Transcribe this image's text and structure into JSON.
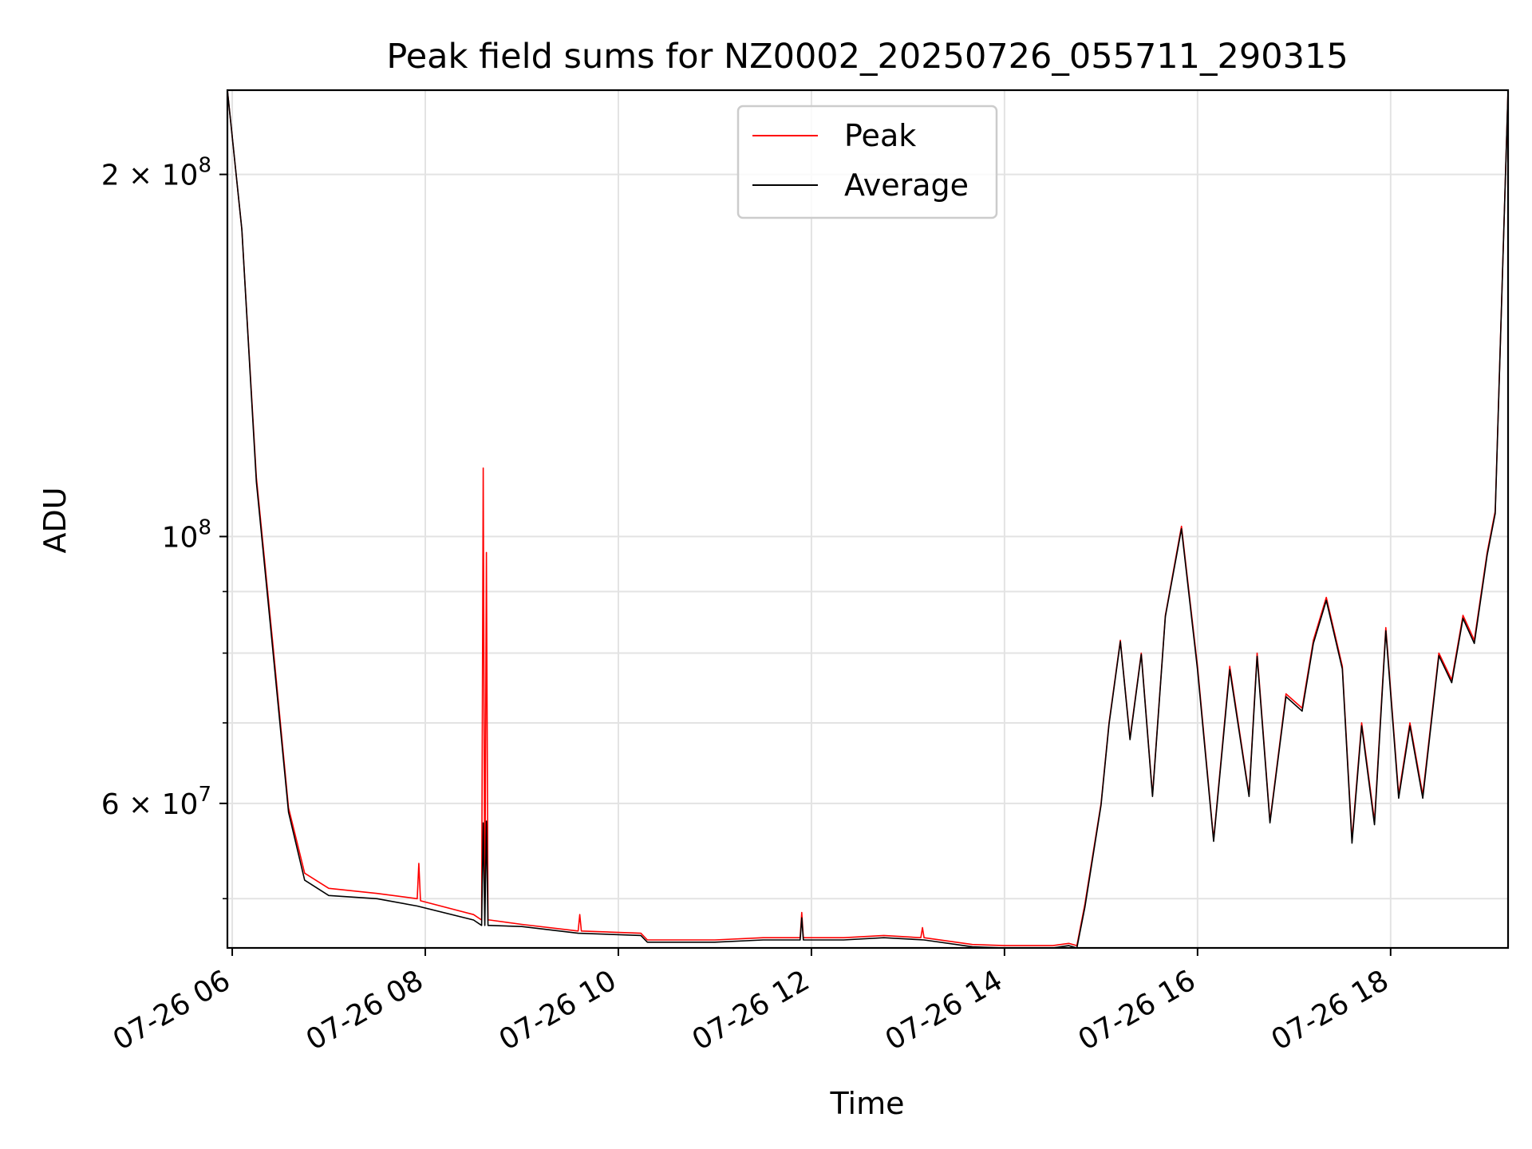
{
  "chart_data": {
    "type": "line",
    "title": "Peak field sums for NZ0002_20250726_055711_290315",
    "xlabel": "Time",
    "ylabel": "ADU",
    "yscale": "log",
    "ylim": [
      45500000,
      235000000
    ],
    "xlim": [
      "2025-07-26 05:57:00",
      "2025-07-26 19:13:00"
    ],
    "grid": true,
    "legend_position": "upper center",
    "x_tick_labels": [
      "07-26 06",
      "07-26 08",
      "07-26 10",
      "07-26 12",
      "07-26 14",
      "07-26 16",
      "07-26 18"
    ],
    "x_tick_values": [
      "2025-07-26 06:00",
      "2025-07-26 08:00",
      "2025-07-26 10:00",
      "2025-07-26 12:00",
      "2025-07-26 14:00",
      "2025-07-26 16:00",
      "2025-07-26 18:00"
    ],
    "y_tick_labels": [
      {
        "value": 200000000,
        "mantissa": "2",
        "exponent": "8"
      },
      {
        "value": 100000000,
        "mantissa": "",
        "exponent": "8"
      },
      {
        "value": 60000000,
        "mantissa": "6",
        "exponent": "7"
      }
    ],
    "y_minor_ticks": [
      50000000,
      70000000,
      80000000,
      90000000
    ],
    "series": [
      {
        "name": "Peak",
        "color": "#ff0000",
        "x": [
          "2025-07-26 05:57",
          "2025-07-26 06:06",
          "2025-07-26 06:15",
          "2025-07-26 06:25",
          "2025-07-26 06:35",
          "2025-07-26 06:45",
          "2025-07-26 07:00",
          "2025-07-26 07:30",
          "2025-07-26 07:55",
          "2025-07-26 07:56",
          "2025-07-26 07:57",
          "2025-07-26 08:30",
          "2025-07-26 08:35",
          "2025-07-26 08:36",
          "2025-07-26 08:37",
          "2025-07-26 08:38",
          "2025-07-26 08:39",
          "2025-07-26 08:40",
          "2025-07-26 09:00",
          "2025-07-26 09:35",
          "2025-07-26 09:36",
          "2025-07-26 09:37",
          "2025-07-26 10:14",
          "2025-07-26 10:18",
          "2025-07-26 10:30",
          "2025-07-26 11:00",
          "2025-07-26 11:30",
          "2025-07-26 11:53",
          "2025-07-26 11:54",
          "2025-07-26 11:55",
          "2025-07-26 12:20",
          "2025-07-26 12:45",
          "2025-07-26 13:08",
          "2025-07-26 13:09",
          "2025-07-26 13:10",
          "2025-07-26 13:40",
          "2025-07-26 14:00",
          "2025-07-26 14:30",
          "2025-07-26 14:40",
          "2025-07-26 14:45",
          "2025-07-26 14:50",
          "2025-07-26 15:00",
          "2025-07-26 15:05",
          "2025-07-26 15:12",
          "2025-07-26 15:18",
          "2025-07-26 15:25",
          "2025-07-26 15:32",
          "2025-07-26 15:40",
          "2025-07-26 15:50",
          "2025-07-26 16:00",
          "2025-07-26 16:10",
          "2025-07-26 16:20",
          "2025-07-26 16:32",
          "2025-07-26 16:37",
          "2025-07-26 16:45",
          "2025-07-26 16:55",
          "2025-07-26 17:05",
          "2025-07-26 17:12",
          "2025-07-26 17:20",
          "2025-07-26 17:30",
          "2025-07-26 17:36",
          "2025-07-26 17:42",
          "2025-07-26 17:50",
          "2025-07-26 17:57",
          "2025-07-26 18:05",
          "2025-07-26 18:12",
          "2025-07-26 18:20",
          "2025-07-26 18:30",
          "2025-07-26 18:38",
          "2025-07-26 18:45",
          "2025-07-26 18:52",
          "2025-07-26 19:00",
          "2025-07-26 19:05",
          "2025-07-26 19:13"
        ],
        "values": [
          235000000,
          180000000,
          112000000,
          82000000,
          59500000,
          52500000,
          51000000,
          50500000,
          50000000,
          53500000,
          49800000,
          48500000,
          48000000,
          114000000,
          48000000,
          97000000,
          48000000,
          48000000,
          47600000,
          47000000,
          48500000,
          47000000,
          46800000,
          46200000,
          46200000,
          46200000,
          46400000,
          46400000,
          48700000,
          46400000,
          46400000,
          46600000,
          46400000,
          47300000,
          46400000,
          45800000,
          45700000,
          45700000,
          45900000,
          45700000,
          49500000,
          60000000,
          70000000,
          82000000,
          68000000,
          80000000,
          61000000,
          86000000,
          102000000,
          78000000,
          56000000,
          78000000,
          61000000,
          80000000,
          58000000,
          74000000,
          72000000,
          82000000,
          89000000,
          78000000,
          56000000,
          70000000,
          58000000,
          84000000,
          61000000,
          70000000,
          61000000,
          80000000,
          76000000,
          86000000,
          82000000,
          97000000,
          105000000,
          235000000
        ]
      },
      {
        "name": "Average",
        "color": "#000000",
        "x": [
          "2025-07-26 05:57",
          "2025-07-26 06:06",
          "2025-07-26 06:15",
          "2025-07-26 06:25",
          "2025-07-26 06:35",
          "2025-07-26 06:45",
          "2025-07-26 07:00",
          "2025-07-26 07:30",
          "2025-07-26 07:55",
          "2025-07-26 08:30",
          "2025-07-26 08:35",
          "2025-07-26 08:36",
          "2025-07-26 08:37",
          "2025-07-26 08:38",
          "2025-07-26 08:39",
          "2025-07-26 08:40",
          "2025-07-26 09:00",
          "2025-07-26 09:35",
          "2025-07-26 10:14",
          "2025-07-26 10:18",
          "2025-07-26 10:30",
          "2025-07-26 11:00",
          "2025-07-26 11:30",
          "2025-07-26 11:53",
          "2025-07-26 11:54",
          "2025-07-26 11:55",
          "2025-07-26 12:20",
          "2025-07-26 12:45",
          "2025-07-26 13:10",
          "2025-07-26 13:40",
          "2025-07-26 14:00",
          "2025-07-26 14:30",
          "2025-07-26 14:40",
          "2025-07-26 14:45",
          "2025-07-26 14:50",
          "2025-07-26 15:00",
          "2025-07-26 15:05",
          "2025-07-26 15:12",
          "2025-07-26 15:18",
          "2025-07-26 15:25",
          "2025-07-26 15:32",
          "2025-07-26 15:40",
          "2025-07-26 15:50",
          "2025-07-26 16:00",
          "2025-07-26 16:10",
          "2025-07-26 16:20",
          "2025-07-26 16:32",
          "2025-07-26 16:37",
          "2025-07-26 16:45",
          "2025-07-26 16:55",
          "2025-07-26 17:05",
          "2025-07-26 17:12",
          "2025-07-26 17:20",
          "2025-07-26 17:30",
          "2025-07-26 17:36",
          "2025-07-26 17:42",
          "2025-07-26 17:50",
          "2025-07-26 17:57",
          "2025-07-26 18:05",
          "2025-07-26 18:12",
          "2025-07-26 18:20",
          "2025-07-26 18:30",
          "2025-07-26 18:38",
          "2025-07-26 18:45",
          "2025-07-26 18:52",
          "2025-07-26 19:00",
          "2025-07-26 19:05",
          "2025-07-26 19:13"
        ],
        "values": [
          235000000,
          180000000,
          111000000,
          81000000,
          59000000,
          51800000,
          50300000,
          50000000,
          49300000,
          48000000,
          47500000,
          57800000,
          47500000,
          58000000,
          47500000,
          47500000,
          47400000,
          46800000,
          46600000,
          46000000,
          46000000,
          46000000,
          46200000,
          46200000,
          48200000,
          46200000,
          46200000,
          46400000,
          46200000,
          45600000,
          45500000,
          45500000,
          45700000,
          45500000,
          49200000,
          59800000,
          69800000,
          81800000,
          67800000,
          79800000,
          60800000,
          85800000,
          101500000,
          77500000,
          55800000,
          77500000,
          60800000,
          79500000,
          57800000,
          73600000,
          71600000,
          81500000,
          88500000,
          77600000,
          55600000,
          69600000,
          57600000,
          83500000,
          60600000,
          69600000,
          60600000,
          79600000,
          75600000,
          85500000,
          81500000,
          96500000,
          104500000,
          235000000
        ]
      }
    ]
  }
}
